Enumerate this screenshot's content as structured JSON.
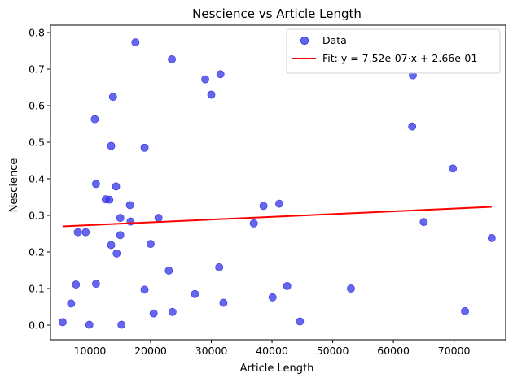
{
  "chart_data": {
    "type": "scatter",
    "title": "Nescience vs Article Length",
    "xlabel": "Article Length",
    "ylabel": "Nescience",
    "xlim": [
      3500,
      78500
    ],
    "ylim": [
      -0.04,
      0.82
    ],
    "xticks": [
      10000,
      20000,
      30000,
      40000,
      50000,
      60000,
      70000
    ],
    "xtick_labels": [
      "10000",
      "20000",
      "30000",
      "40000",
      "50000",
      "60000",
      "70000"
    ],
    "yticks": [
      0.0,
      0.1,
      0.2,
      0.3,
      0.4,
      0.5,
      0.6,
      0.7,
      0.8
    ],
    "ytick_labels": [
      "0.0",
      "0.1",
      "0.2",
      "0.3",
      "0.4",
      "0.5",
      "0.6",
      "0.7",
      "0.8"
    ],
    "grid": false,
    "legend_position": "top-right",
    "scatter_color": "#3333e6",
    "fit_color": "#ff0000",
    "series": [
      {
        "name": "Data",
        "kind": "scatter",
        "x": [
          17500,
          23500,
          29000,
          31500,
          30000,
          13800,
          10800,
          13500,
          19000,
          11000,
          14300,
          12600,
          13200,
          16600,
          15000,
          21300,
          16700,
          8000,
          9300,
          15000,
          13500,
          20000,
          14400,
          23000,
          31300,
          7700,
          11000,
          19000,
          27300,
          42500,
          40100,
          32000,
          6900,
          53000,
          20500,
          23600,
          5500,
          9900,
          15200,
          44600,
          71800,
          76200,
          65000,
          63200,
          63100,
          69800,
          37000,
          38600,
          41200
        ],
        "y": [
          0.773,
          0.727,
          0.672,
          0.686,
          0.63,
          0.624,
          0.563,
          0.49,
          0.485,
          0.386,
          0.379,
          0.344,
          0.343,
          0.328,
          0.293,
          0.293,
          0.283,
          0.254,
          0.254,
          0.246,
          0.219,
          0.222,
          0.196,
          0.149,
          0.158,
          0.111,
          0.113,
          0.097,
          0.085,
          0.107,
          0.076,
          0.061,
          0.059,
          0.1,
          0.032,
          0.036,
          0.008,
          0.001,
          0.001,
          0.01,
          0.038,
          0.238,
          0.282,
          0.683,
          0.543,
          0.428,
          0.278,
          0.326,
          0.332
        ]
      },
      {
        "name": "Fit: y = 7.52e-07·x + 2.66e-01",
        "kind": "line",
        "slope": 7.52e-07,
        "intercept": 0.266,
        "x": [
          5500,
          76200
        ]
      }
    ]
  }
}
